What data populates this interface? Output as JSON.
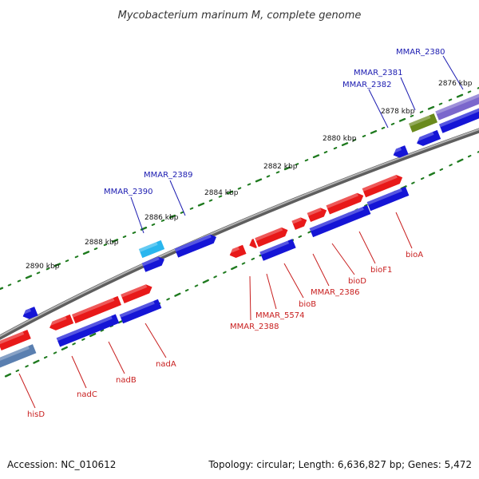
{
  "title": "Mycobacterium marinum M, complete genome",
  "footer": {
    "accession": "Accession: NC_010612",
    "topology": "Topology: circular; Length: 6,636,827 bp; Genes: 5,472"
  },
  "colors": {
    "forward_gene": "#e81919",
    "reverse_gene": "#1515d6",
    "rna_gene": "#5a7fb0",
    "light_blue_gene": "#29b6ee",
    "olive_gene": "#6a8a1c",
    "lavender_gene": "#7b67cc",
    "backbone": "#8c8c8c",
    "tick": "#1e7a1e",
    "top_label": "#1a1ab0",
    "bottom_label": "#c81e1e"
  },
  "ticks": [
    {
      "label": "2876 kbp"
    },
    {
      "label": "2878 kbp"
    },
    {
      "label": "2880 kbp"
    },
    {
      "label": "2882 kbp"
    },
    {
      "label": "2884 kbp"
    },
    {
      "label": "2886 kbp"
    },
    {
      "label": "2888 kbp"
    },
    {
      "label": "2890 kbp"
    }
  ],
  "top_labels": [
    {
      "text": "MMAR_2380"
    },
    {
      "text": "MMAR_2381"
    },
    {
      "text": "MMAR_2382"
    },
    {
      "text": "MMAR_2389"
    },
    {
      "text": "MMAR_2390"
    }
  ],
  "bottom_labels": [
    {
      "text": "bioA"
    },
    {
      "text": "bioF1"
    },
    {
      "text": "bioD"
    },
    {
      "text": "MMAR_2386"
    },
    {
      "text": "bioB"
    },
    {
      "text": "MMAR_5574"
    },
    {
      "text": "MMAR_2388"
    },
    {
      "text": "nadA"
    },
    {
      "text": "nadB"
    },
    {
      "text": "nadC"
    },
    {
      "text": "hisD"
    }
  ]
}
